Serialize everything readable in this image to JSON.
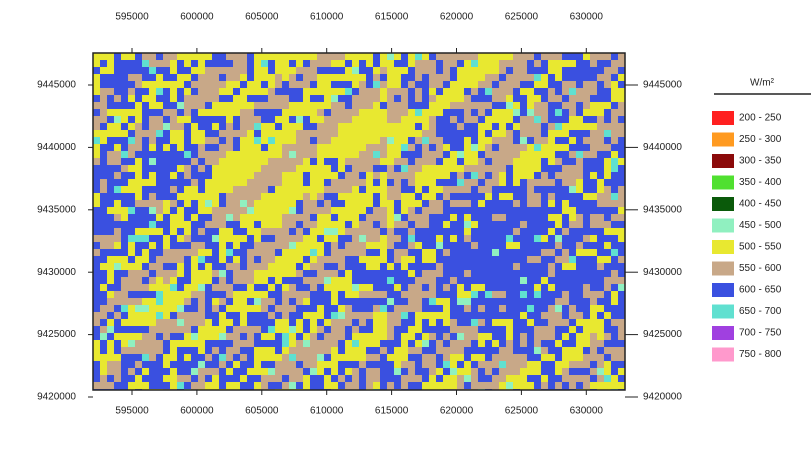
{
  "map": {
    "x_ticks": [
      595000,
      600000,
      605000,
      610000,
      615000,
      620000,
      625000,
      630000
    ],
    "y_ticks": [
      9445000,
      9440000,
      9435000,
      9430000,
      9425000,
      9420000
    ],
    "legend": {
      "title": "W/m²",
      "items": [
        {
          "label": "200 - 250",
          "color": "#ff2020"
        },
        {
          "label": "250 - 300",
          "color": "#ff9a20"
        },
        {
          "label": "300 - 350",
          "color": "#8b0a0a"
        },
        {
          "label": "350 - 400",
          "color": "#50e030"
        },
        {
          "label": "400 - 450",
          "color": "#0a5a0a"
        },
        {
          "label": "450 - 500",
          "color": "#90f0c0"
        },
        {
          "label": "500 - 550",
          "color": "#e8e830"
        },
        {
          "label": "550 - 600",
          "color": "#c8a888"
        },
        {
          "label": "600 - 650",
          "color": "#3a50e0"
        },
        {
          "label": "650 - 700",
          "color": "#60e0d0"
        },
        {
          "label": "700 - 750",
          "color": "#a040e0"
        },
        {
          "label": "750 - 800",
          "color": "#ff99cc"
        }
      ]
    }
  }
}
